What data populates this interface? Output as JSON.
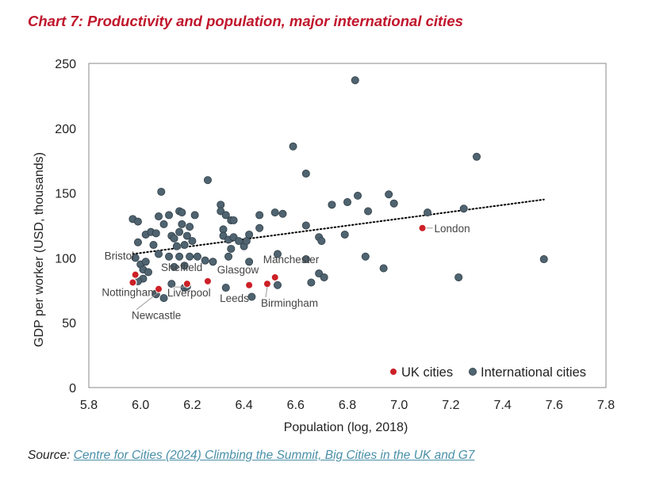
{
  "title": "Chart 7: Productivity and population, major international cities",
  "source": {
    "prefix": "Source:",
    "link_text": "Centre for Cities (2024) Climbing the Summit, Big Cities in the UK and G7"
  },
  "colors": {
    "title": "#c0162c",
    "uk": "#cc2027",
    "international": "#4f6470",
    "trend": "#000000",
    "link": "#4a8fa8"
  },
  "chart_data": {
    "type": "scatter",
    "xlabel": "Population (log, 2018)",
    "ylabel": "GDP per worker (USD, thousands)",
    "xlim": [
      5.8,
      7.8
    ],
    "ylim": [
      0,
      250
    ],
    "x_ticks": [
      "5.8",
      "6.0",
      "6.2",
      "6.4",
      "6.6",
      "6.8",
      "7.0",
      "7.2",
      "7.4",
      "7.6",
      "7.8"
    ],
    "y_ticks": [
      "0",
      "50",
      "100",
      "150",
      "200",
      "250"
    ],
    "grid": false,
    "legend": {
      "position": "bottom-right",
      "entries": [
        "UK cities",
        "International cities"
      ]
    },
    "trendline": {
      "style": "dotted",
      "points": [
        [
          5.97,
          103
        ],
        [
          7.56,
          145
        ]
      ]
    },
    "series": [
      {
        "name": "UK cities",
        "points": [
          {
            "x": 5.98,
            "y": 87,
            "label": "Bristol"
          },
          {
            "x": 5.97,
            "y": 81,
            "label": "Nottingham"
          },
          {
            "x": 6.07,
            "y": 76,
            "label": "Newcastle"
          },
          {
            "x": 6.18,
            "y": 80,
            "label": "Liverpool"
          },
          {
            "x": 6.26,
            "y": 82,
            "label": "Sheffield"
          },
          {
            "x": 6.42,
            "y": 79,
            "label": "Leeds"
          },
          {
            "x": 6.49,
            "y": 80,
            "label": "Birmingham"
          },
          {
            "x": 6.52,
            "y": 85,
            "label": "Glasgow"
          },
          {
            "x": 6.52,
            "y": 85,
            "label": "Manchester"
          },
          {
            "x": 7.09,
            "y": 123,
            "label": "London"
          }
        ]
      },
      {
        "name": "International cities",
        "points": [
          {
            "x": 5.97,
            "y": 130
          },
          {
            "x": 5.99,
            "y": 128
          },
          {
            "x": 6.02,
            "y": 118
          },
          {
            "x": 6.04,
            "y": 120
          },
          {
            "x": 6.06,
            "y": 119
          },
          {
            "x": 6.07,
            "y": 132
          },
          {
            "x": 6.08,
            "y": 151
          },
          {
            "x": 6.11,
            "y": 133
          },
          {
            "x": 6.15,
            "y": 136
          },
          {
            "x": 6.16,
            "y": 135
          },
          {
            "x": 6.21,
            "y": 133
          },
          {
            "x": 6.31,
            "y": 141
          },
          {
            "x": 6.31,
            "y": 136
          },
          {
            "x": 6.33,
            "y": 133
          },
          {
            "x": 6.35,
            "y": 129
          },
          {
            "x": 6.36,
            "y": 129
          },
          {
            "x": 6.26,
            "y": 160
          },
          {
            "x": 6.46,
            "y": 133
          },
          {
            "x": 6.52,
            "y": 135
          },
          {
            "x": 6.55,
            "y": 134
          },
          {
            "x": 6.59,
            "y": 186
          },
          {
            "x": 6.64,
            "y": 165
          },
          {
            "x": 6.64,
            "y": 125
          },
          {
            "x": 6.83,
            "y": 237
          },
          {
            "x": 6.74,
            "y": 141
          },
          {
            "x": 6.8,
            "y": 143
          },
          {
            "x": 6.84,
            "y": 148
          },
          {
            "x": 6.88,
            "y": 136
          },
          {
            "x": 6.96,
            "y": 149
          },
          {
            "x": 6.98,
            "y": 142
          },
          {
            "x": 7.11,
            "y": 135
          },
          {
            "x": 7.25,
            "y": 138
          },
          {
            "x": 7.3,
            "y": 178
          },
          {
            "x": 7.56,
            "y": 99
          },
          {
            "x": 7.23,
            "y": 85
          },
          {
            "x": 6.94,
            "y": 92
          },
          {
            "x": 6.87,
            "y": 101
          },
          {
            "x": 6.79,
            "y": 118
          },
          {
            "x": 6.69,
            "y": 116
          },
          {
            "x": 6.7,
            "y": 113
          },
          {
            "x": 6.69,
            "y": 88
          },
          {
            "x": 6.71,
            "y": 85
          },
          {
            "x": 6.66,
            "y": 81
          },
          {
            "x": 6.64,
            "y": 99
          },
          {
            "x": 5.98,
            "y": 100
          },
          {
            "x": 5.99,
            "y": 112
          },
          {
            "x": 6.0,
            "y": 95
          },
          {
            "x": 6.01,
            "y": 91
          },
          {
            "x": 6.02,
            "y": 97
          },
          {
            "x": 6.03,
            "y": 89
          },
          {
            "x": 6.01,
            "y": 84
          },
          {
            "x": 5.99,
            "y": 82
          },
          {
            "x": 6.05,
            "y": 110
          },
          {
            "x": 6.07,
            "y": 103
          },
          {
            "x": 6.09,
            "y": 126
          },
          {
            "x": 6.12,
            "y": 117
          },
          {
            "x": 6.13,
            "y": 115
          },
          {
            "x": 6.14,
            "y": 109
          },
          {
            "x": 6.15,
            "y": 120
          },
          {
            "x": 6.16,
            "y": 126
          },
          {
            "x": 6.18,
            "y": 117
          },
          {
            "x": 6.19,
            "y": 124
          },
          {
            "x": 6.2,
            "y": 113
          },
          {
            "x": 6.17,
            "y": 110
          },
          {
            "x": 6.11,
            "y": 101
          },
          {
            "x": 6.13,
            "y": 93
          },
          {
            "x": 6.15,
            "y": 101
          },
          {
            "x": 6.17,
            "y": 94
          },
          {
            "x": 6.19,
            "y": 101
          },
          {
            "x": 6.22,
            "y": 101
          },
          {
            "x": 6.25,
            "y": 98
          },
          {
            "x": 6.28,
            "y": 97
          },
          {
            "x": 6.32,
            "y": 122
          },
          {
            "x": 6.32,
            "y": 117
          },
          {
            "x": 6.34,
            "y": 114
          },
          {
            "x": 6.36,
            "y": 116
          },
          {
            "x": 6.38,
            "y": 113
          },
          {
            "x": 6.4,
            "y": 109
          },
          {
            "x": 6.41,
            "y": 113
          },
          {
            "x": 6.42,
            "y": 118
          },
          {
            "x": 6.35,
            "y": 107
          },
          {
            "x": 6.34,
            "y": 101
          },
          {
            "x": 6.42,
            "y": 97
          },
          {
            "x": 6.46,
            "y": 123
          },
          {
            "x": 6.53,
            "y": 103
          },
          {
            "x": 6.53,
            "y": 79
          },
          {
            "x": 6.43,
            "y": 70
          },
          {
            "x": 6.33,
            "y": 77
          },
          {
            "x": 6.12,
            "y": 80
          },
          {
            "x": 6.17,
            "y": 77
          },
          {
            "x": 6.18,
            "y": 78
          },
          {
            "x": 6.06,
            "y": 72
          },
          {
            "x": 6.09,
            "y": 69
          }
        ]
      }
    ]
  }
}
